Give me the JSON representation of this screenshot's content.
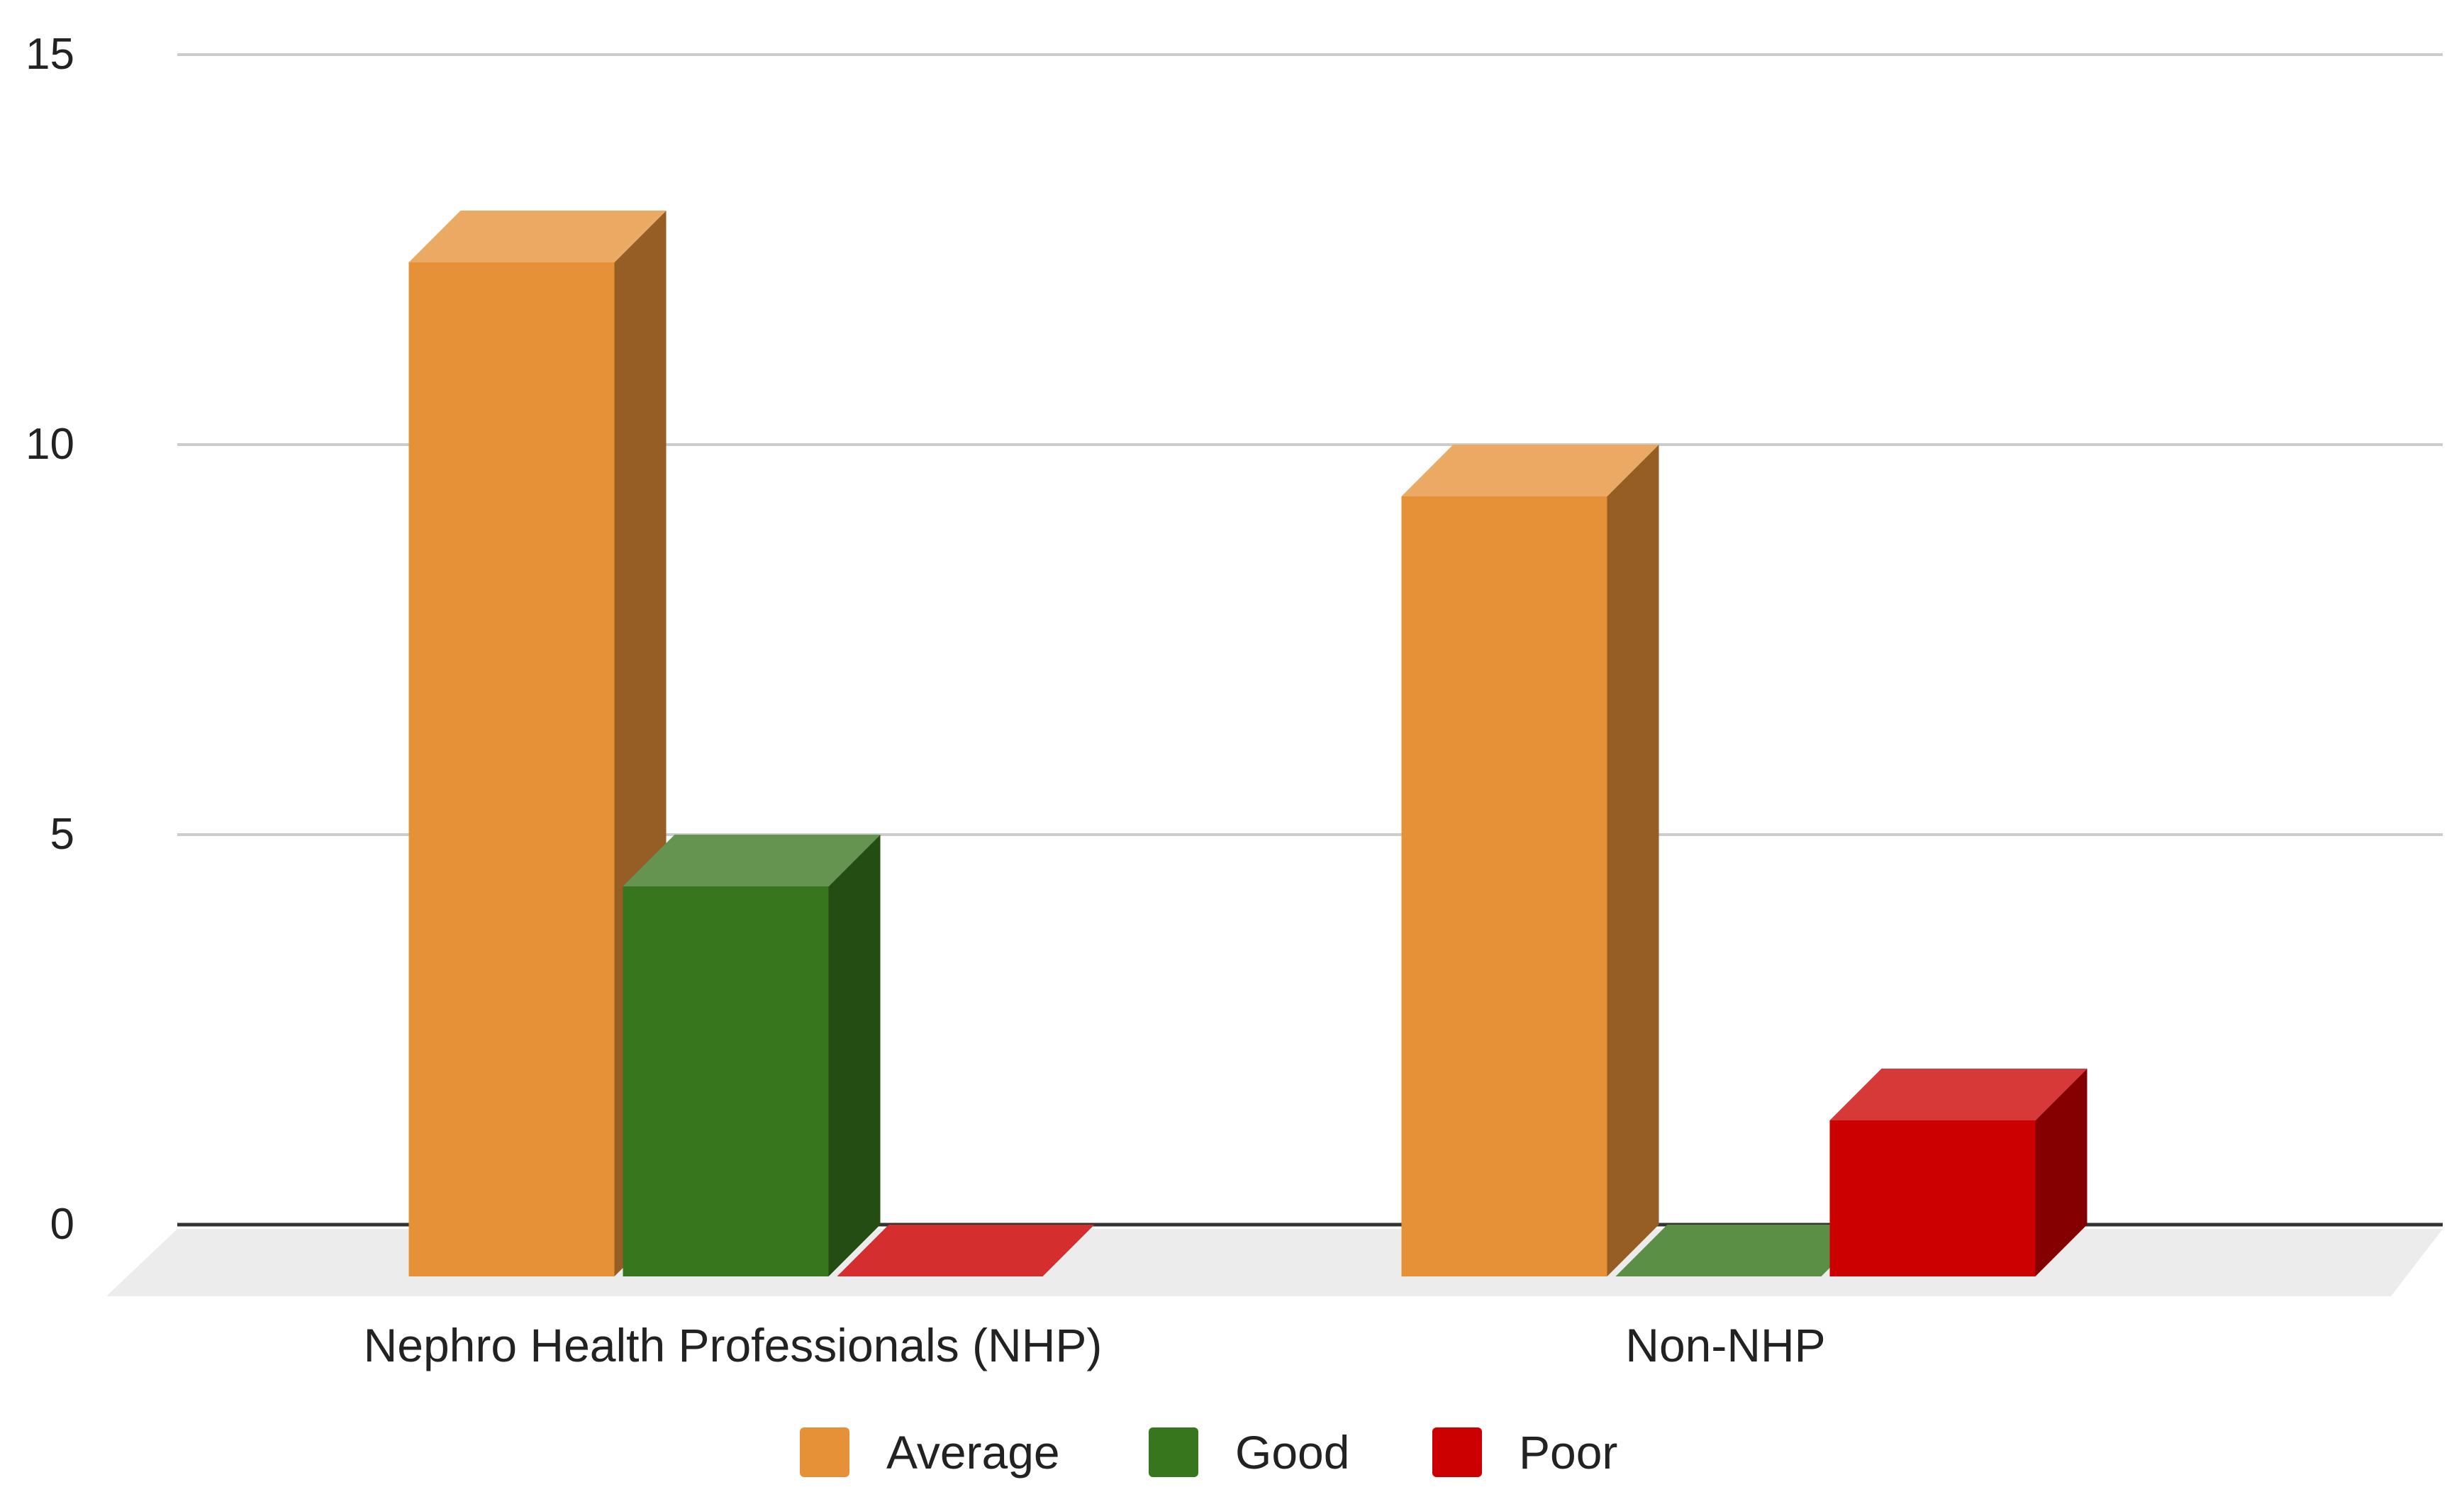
{
  "chart_data": {
    "type": "bar",
    "style": "3d-column",
    "categories": [
      "Nephro Health Professionals (NHP)",
      "Non-NHP"
    ],
    "series": [
      {
        "name": "Average",
        "values": [
          13,
          10
        ],
        "color": "#E69138"
      },
      {
        "name": "Good",
        "values": [
          5,
          0
        ],
        "color": "#38761D"
      },
      {
        "name": "Poor",
        "values": [
          0,
          2
        ],
        "color": "#CC0000"
      }
    ],
    "ylim": [
      0,
      15
    ],
    "yticks": [
      "0",
      "5",
      "10",
      "15"
    ],
    "grid": true,
    "legend_position": "bottom"
  }
}
